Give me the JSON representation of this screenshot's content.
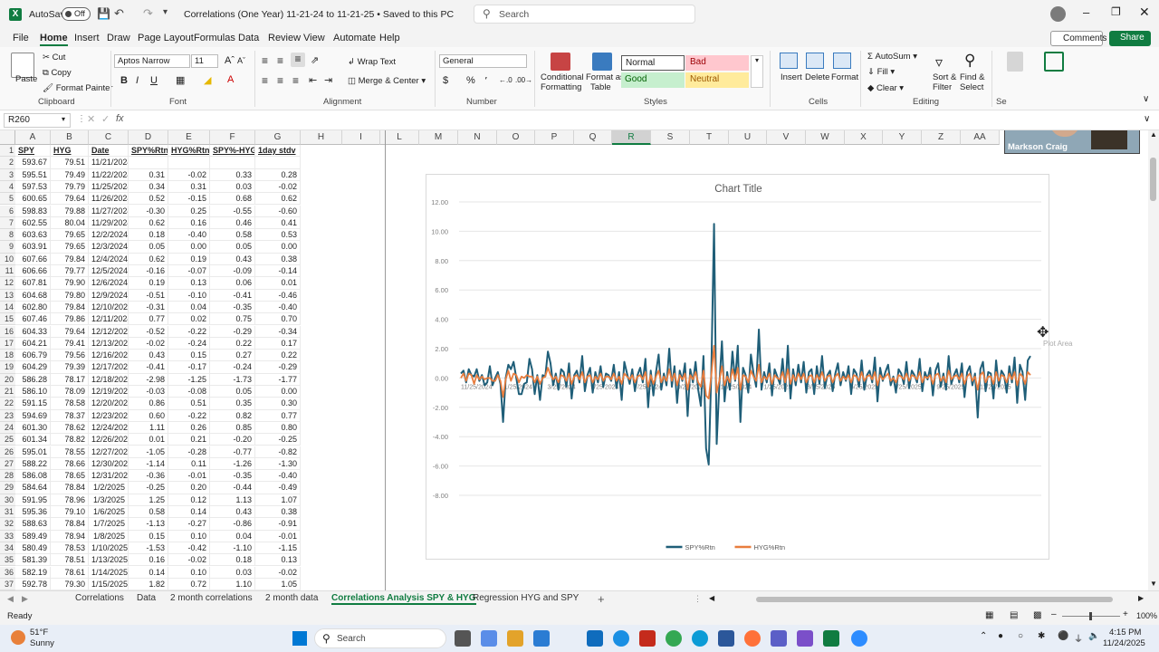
{
  "titlebar": {
    "autosave_label": "AutoSave",
    "autosave_state": "Off",
    "doc_title": "Correlations (One Year) 11-21-24 to 11-21-25 • Saved to this PC",
    "search_placeholder": "Search"
  },
  "menu": [
    "File",
    "Home",
    "Insert",
    "Draw",
    "Page Layout",
    "Formulas",
    "Data",
    "Review",
    "View",
    "Automate",
    "Help"
  ],
  "menu_active": "Home",
  "comments_label": "Comments",
  "share_label": "Share",
  "ribbon": {
    "paste": "Paste",
    "cut": "Cut",
    "copy": "Copy",
    "format_painter": "Format Painter",
    "clipboard": "Clipboard",
    "font_name": "Aptos Narrow",
    "font_size": "11",
    "font": "Font",
    "wrap_text": "Wrap Text",
    "merge_center": "Merge & Center",
    "alignment": "Alignment",
    "number_format": "General",
    "number": "Number",
    "conditional_formatting_1": "Conditional",
    "conditional_formatting_2": "Formatting",
    "format_as_table_1": "Format as",
    "format_as_table_2": "Table",
    "style_normal": "Normal",
    "style_bad": "Bad",
    "style_good": "Good",
    "style_neutral": "Neutral",
    "styles": "Styles",
    "insert": "Insert",
    "delete": "Delete",
    "format": "Format",
    "cells": "Cells",
    "autosum": "AutoSum",
    "fill": "Fill",
    "clear": "Clear",
    "sort_filter_1": "Sort &",
    "sort_filter_2": "Filter",
    "find_select_1": "Find &",
    "find_select_2": "Select",
    "editing": "Editing",
    "sens_partial": "Se"
  },
  "formula_bar": {
    "name_box": "R260",
    "fx": "fx",
    "formula": ""
  },
  "webcam_name": "Markson Craig",
  "columns": [
    "A",
    "B",
    "C",
    "D",
    "E",
    "F",
    "G",
    "H",
    "I",
    "L",
    "M",
    "N",
    "O",
    "P",
    "Q",
    "R",
    "S",
    "T",
    "U",
    "V",
    "W",
    "X",
    "Y",
    "Z",
    "AA"
  ],
  "headers": [
    "SPY",
    "HYG",
    "Date",
    "SPY%Rtn",
    "HYG%Rtn",
    "SPY%-HYG%",
    "1day stdv"
  ],
  "rows": [
    [
      "593.67",
      "79.51",
      "11/21/2024",
      "",
      "",
      "",
      ""
    ],
    [
      "595.51",
      "79.49",
      "11/22/2024",
      "0.31",
      "-0.02",
      "0.33",
      "0.28"
    ],
    [
      "597.53",
      "79.79",
      "11/25/2024",
      "0.34",
      "0.31",
      "0.03",
      "-0.02"
    ],
    [
      "600.65",
      "79.64",
      "11/26/2024",
      "0.52",
      "-0.15",
      "0.68",
      "0.62"
    ],
    [
      "598.83",
      "79.88",
      "11/27/2024",
      "-0.30",
      "0.25",
      "-0.55",
      "-0.60"
    ],
    [
      "602.55",
      "80.04",
      "11/29/2024",
      "0.62",
      "0.16",
      "0.46",
      "0.41"
    ],
    [
      "603.63",
      "79.65",
      "12/2/2024",
      "0.18",
      "-0.40",
      "0.58",
      "0.53"
    ],
    [
      "603.91",
      "79.65",
      "12/3/2024",
      "0.05",
      "0.00",
      "0.05",
      "0.00"
    ],
    [
      "607.66",
      "79.84",
      "12/4/2024",
      "0.62",
      "0.19",
      "0.43",
      "0.38"
    ],
    [
      "606.66",
      "79.77",
      "12/5/2024",
      "-0.16",
      "-0.07",
      "-0.09",
      "-0.14"
    ],
    [
      "607.81",
      "79.90",
      "12/6/2024",
      "0.19",
      "0.13",
      "0.06",
      "0.01"
    ],
    [
      "604.68",
      "79.80",
      "12/9/2024",
      "-0.51",
      "-0.10",
      "-0.41",
      "-0.46"
    ],
    [
      "602.80",
      "79.84",
      "12/10/2024",
      "-0.31",
      "0.04",
      "-0.35",
      "-0.40"
    ],
    [
      "607.46",
      "79.86",
      "12/11/2024",
      "0.77",
      "0.02",
      "0.75",
      "0.70"
    ],
    [
      "604.33",
      "79.64",
      "12/12/2024",
      "-0.52",
      "-0.22",
      "-0.29",
      "-0.34"
    ],
    [
      "604.21",
      "79.41",
      "12/13/2024",
      "-0.02",
      "-0.24",
      "0.22",
      "0.17"
    ],
    [
      "606.79",
      "79.56",
      "12/16/2024",
      "0.43",
      "0.15",
      "0.27",
      "0.22"
    ],
    [
      "604.29",
      "79.39",
      "12/17/2024",
      "-0.41",
      "-0.17",
      "-0.24",
      "-0.29"
    ],
    [
      "586.28",
      "78.17",
      "12/18/2024",
      "-2.98",
      "-1.25",
      "-1.73",
      "-1.77"
    ],
    [
      "586.10",
      "78.09",
      "12/19/2024",
      "-0.03",
      "-0.08",
      "0.05",
      "0.00"
    ],
    [
      "591.15",
      "78.58",
      "12/20/2024",
      "0.86",
      "0.51",
      "0.35",
      "0.30"
    ],
    [
      "594.69",
      "78.37",
      "12/23/2024",
      "0.60",
      "-0.22",
      "0.82",
      "0.77"
    ],
    [
      "601.30",
      "78.62",
      "12/24/2024",
      "1.11",
      "0.26",
      "0.85",
      "0.80"
    ],
    [
      "601.34",
      "78.82",
      "12/26/2024",
      "0.01",
      "0.21",
      "-0.20",
      "-0.25"
    ],
    [
      "595.01",
      "78.55",
      "12/27/2024",
      "-1.05",
      "-0.28",
      "-0.77",
      "-0.82"
    ],
    [
      "588.22",
      "78.66",
      "12/30/2024",
      "-1.14",
      "0.11",
      "-1.26",
      "-1.30"
    ],
    [
      "586.08",
      "78.65",
      "12/31/2024",
      "-0.36",
      "-0.01",
      "-0.35",
      "-0.40"
    ],
    [
      "584.64",
      "78.84",
      "1/2/2025",
      "-0.25",
      "0.20",
      "-0.44",
      "-0.49"
    ],
    [
      "591.95",
      "78.96",
      "1/3/2025",
      "1.25",
      "0.12",
      "1.13",
      "1.07"
    ],
    [
      "595.36",
      "79.10",
      "1/6/2025",
      "0.58",
      "0.14",
      "0.43",
      "0.38"
    ],
    [
      "588.63",
      "78.84",
      "1/7/2025",
      "-1.13",
      "-0.27",
      "-0.86",
      "-0.91"
    ],
    [
      "589.49",
      "78.94",
      "1/8/2025",
      "0.15",
      "0.10",
      "0.04",
      "-0.01"
    ],
    [
      "580.49",
      "78.53",
      "1/10/2025",
      "-1.53",
      "-0.42",
      "-1.10",
      "-1.15"
    ],
    [
      "581.39",
      "78.51",
      "1/13/2025",
      "0.16",
      "-0.02",
      "0.18",
      "0.13"
    ],
    [
      "582.19",
      "78.61",
      "1/14/2025",
      "0.14",
      "0.10",
      "0.03",
      "-0.02"
    ],
    [
      "592.78",
      "79.30",
      "1/15/2025",
      "1.82",
      "0.72",
      "1.10",
      "1.05"
    ]
  ],
  "chart_data": {
    "type": "line",
    "title": "Chart Title",
    "ylim": [
      -8,
      12
    ],
    "yticks": [
      "12.00",
      "10.00",
      "8.00",
      "6.00",
      "4.00",
      "2.00",
      "0.00",
      "-2.00",
      "-4.00",
      "-6.00",
      "-8.00"
    ],
    "xticks": [
      "11/25/2024",
      "1/25/2024",
      "3/25/2024",
      "5/25/2024",
      "7/25/2024",
      "9/25/2024",
      "11/25/2024",
      "1/25/2025",
      "3/25/2025",
      "5/25/2025",
      "7/25/2025",
      "9/25/2025",
      "11/25/2025"
    ],
    "legend_position": "bottom",
    "grid": true,
    "series": [
      {
        "name": "SPY%Rtn",
        "color": "#1f5e78",
        "values": [
          0.3,
          0.5,
          -0.3,
          0.6,
          0.2,
          0.1,
          0.6,
          -0.2,
          0.2,
          -0.5,
          -0.3,
          0.8,
          -0.5,
          0.0,
          0.4,
          -0.4,
          -3.0,
          0.0,
          0.9,
          0.6,
          1.1,
          0.0,
          -1.1,
          -1.1,
          -0.4,
          -0.3,
          1.3,
          0.6,
          -1.1,
          0.2,
          -1.5,
          0.2,
          0.1,
          1.8,
          1.0,
          -0.5,
          0.3,
          -0.8,
          0.6,
          0.4,
          -0.6,
          1.0,
          -1.4,
          0.2,
          0.5,
          -0.3,
          1.5,
          -0.9,
          0.2,
          0.7,
          -1.0,
          0.4,
          -0.3,
          0.8,
          -0.6,
          0.3,
          0.2,
          -0.2,
          0.9,
          -0.7,
          0.4,
          -1.5,
          1.1,
          0.3,
          -0.4,
          0.6,
          -0.9,
          0.2,
          0.7,
          -0.3,
          1.3,
          -2.0,
          0.5,
          -1.2,
          0.4,
          1.6,
          -0.8,
          0.3,
          -0.5,
          2.0,
          -0.6,
          0.8,
          -1.7,
          0.5,
          -0.2,
          1.0,
          -2.6,
          0.6,
          -0.3,
          1.1,
          -0.8,
          -1.9,
          1.5,
          -4.8,
          -5.9,
          0.5,
          10.5,
          -4.5,
          -0.5,
          2.5,
          -1.6,
          0.4,
          -0.8,
          1.8,
          -0.2,
          2.2,
          -3.0,
          0.7,
          0.2,
          -1.0,
          1.6,
          0.3,
          -0.6,
          3.3,
          -0.8,
          0.4,
          -0.3,
          1.0,
          -1.2,
          0.6,
          0.1,
          -0.4,
          1.3,
          -0.9,
          2.2,
          -1.4,
          0.6,
          -0.5,
          0.9,
          -0.3,
          1.1,
          -1.0,
          0.4,
          0.6,
          -1.1,
          0.8,
          -0.4,
          1.5,
          -0.7,
          0.2,
          0.5,
          -0.9,
          0.3,
          1.0,
          -0.5,
          0.4,
          -0.2,
          0.8,
          -1.1,
          0.6,
          0.3,
          -0.6,
          1.2,
          -0.8,
          0.2,
          0.5,
          -0.3,
          1.4,
          -1.6,
          0.7,
          -0.2,
          0.4,
          0.9,
          -0.5,
          0.1,
          -1.0,
          0.6,
          0.3,
          -0.4,
          1.1,
          -0.7,
          0.5,
          0.2,
          -0.3,
          1.3,
          -0.9,
          0.4,
          -0.1,
          0.7,
          -1.2,
          0.5,
          1.0,
          -0.6,
          0.3,
          -0.8,
          1.5,
          -0.4,
          0.2,
          0.6,
          -0.3,
          1.0,
          -1.3,
          0.4,
          0.8,
          -0.5,
          0.3,
          -2.7,
          0.6,
          1.1,
          -0.9,
          0.4,
          0.3,
          -1.4,
          1.2,
          -0.6,
          0.5,
          0.2,
          -1.0,
          0.8,
          -0.3,
          1.4,
          -1.7,
          0.9,
          0.4,
          -1.5,
          1.2,
          1.5
        ]
      },
      {
        "name": "HYG%Rtn",
        "color": "#e87d3e",
        "values": [
          0.0,
          0.3,
          -0.2,
          0.3,
          0.2,
          -0.4,
          0.2,
          -0.1,
          0.1,
          -0.1,
          0.0,
          0.0,
          -0.2,
          -0.2,
          0.2,
          -0.2,
          -1.3,
          -0.1,
          0.5,
          -0.2,
          0.3,
          0.2,
          -0.3,
          0.1,
          0.0,
          0.2,
          0.1,
          0.1,
          -0.3,
          0.1,
          -0.4,
          0.0,
          0.1,
          0.7,
          0.2,
          -0.1,
          0.1,
          -0.3,
          0.2,
          0.1,
          -0.2,
          0.3,
          -0.4,
          0.1,
          0.2,
          -0.1,
          0.4,
          -0.3,
          0.1,
          0.2,
          -0.3,
          0.1,
          -0.1,
          0.3,
          -0.2,
          0.1,
          0.1,
          -0.1,
          0.3,
          -0.2,
          0.1,
          -0.4,
          0.3,
          0.1,
          -0.1,
          0.2,
          -0.3,
          0.1,
          0.2,
          -0.1,
          0.4,
          -0.6,
          0.2,
          -0.4,
          0.1,
          0.5,
          -0.3,
          0.1,
          -0.2,
          0.6,
          -0.2,
          0.3,
          -0.5,
          0.2,
          -0.1,
          0.3,
          -0.8,
          0.2,
          -0.1,
          0.4,
          -0.3,
          -0.6,
          0.5,
          -1.2,
          -1.4,
          0.2,
          2.2,
          -1.0,
          -0.2,
          0.8,
          -0.5,
          0.1,
          -0.3,
          0.6,
          -0.1,
          0.7,
          -0.8,
          0.2,
          0.1,
          -0.3,
          0.5,
          0.1,
          -0.2,
          0.9,
          -0.3,
          0.1,
          -0.1,
          0.3,
          -0.4,
          0.2,
          0.0,
          -0.1,
          0.4,
          -0.3,
          0.6,
          -0.4,
          0.2,
          -0.2,
          0.3,
          -0.1,
          0.3,
          -0.3,
          0.1,
          0.2,
          -0.3,
          0.2,
          -0.1,
          0.4,
          -0.2,
          0.1,
          0.2,
          -0.3,
          0.1,
          0.3,
          -0.2,
          0.1,
          -0.1,
          0.2,
          -0.3,
          0.2,
          0.1,
          -0.2,
          0.4,
          -0.2,
          0.1,
          0.2,
          -0.1,
          0.4,
          -0.5,
          0.2,
          -0.1,
          0.1,
          0.3,
          -0.2,
          0.0,
          -0.3,
          0.2,
          0.1,
          -0.1,
          0.3,
          -0.2,
          0.2,
          0.1,
          -0.1,
          0.4,
          -0.3,
          0.1,
          0.0,
          0.2,
          -0.4,
          0.2,
          0.3,
          -0.2,
          0.1,
          -0.3,
          0.5,
          -0.1,
          0.1,
          0.2,
          -0.1,
          0.3,
          -0.4,
          0.1,
          0.3,
          -0.2,
          0.1,
          -0.8,
          0.2,
          0.4,
          -0.3,
          0.1,
          0.1,
          -0.4,
          0.4,
          -0.2,
          0.2,
          0.1,
          -0.3,
          0.3,
          -0.1,
          0.4,
          -0.5,
          0.3,
          0.1,
          -0.4,
          0.4,
          0.2
        ]
      }
    ]
  },
  "sheet_tabs": [
    "Correlations",
    "Data",
    "2 month correlations",
    "2 month data",
    "Correlations Analysis SPY & HYG",
    "Regression HYG and SPY"
  ],
  "active_sheet": "Correlations Analysis SPY & HYG",
  "plot_area_tooltip": "Plot Area",
  "status": {
    "ready": "Ready",
    "zoom": "100%"
  },
  "taskbar": {
    "weather_temp": "51°F",
    "weather_desc": "Sunny",
    "search": "Search",
    "time": "4:15 PM",
    "date": "11/24/2025"
  }
}
